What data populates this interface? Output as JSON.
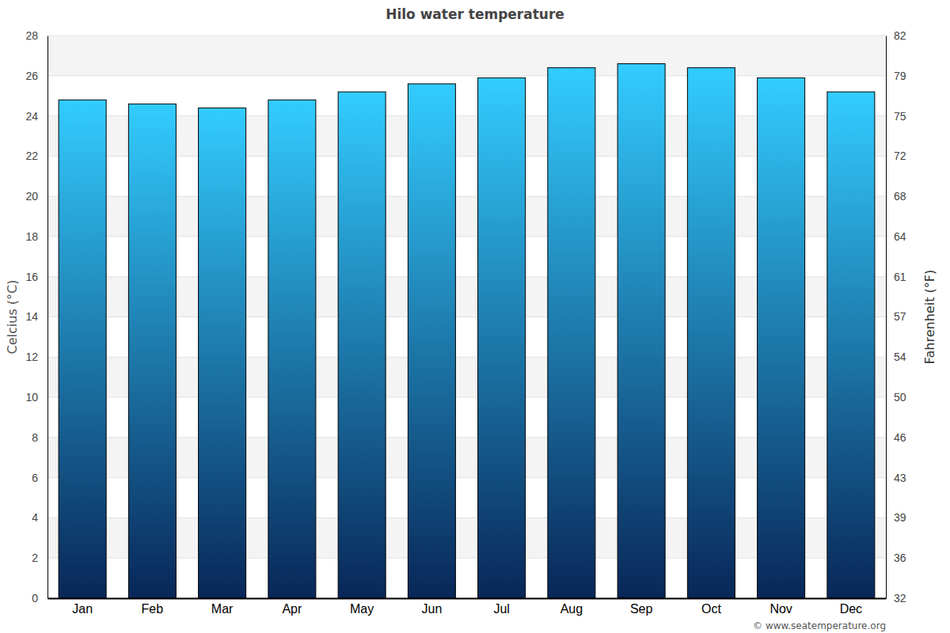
{
  "chart_data": {
    "type": "bar",
    "title": "Hilo water temperature",
    "categories": [
      "Jan",
      "Feb",
      "Mar",
      "Apr",
      "May",
      "Jun",
      "Jul",
      "Aug",
      "Sep",
      "Oct",
      "Nov",
      "Dec"
    ],
    "values": [
      24.8,
      24.6,
      24.4,
      24.8,
      25.2,
      25.6,
      25.9,
      26.4,
      26.6,
      26.4,
      25.9,
      25.2
    ],
    "color": "#33ccff",
    "y_label": "Celcius (°C)",
    "y2_label": "Fahrenheit (°F)",
    "ylim": [
      0,
      28
    ],
    "yticks": [
      0,
      2,
      4,
      6,
      8,
      10,
      12,
      14,
      16,
      18,
      20,
      22,
      24,
      26,
      28
    ],
    "y2lim": [
      32,
      82.4
    ],
    "y2ticks": [
      32,
      {
        "value": 35.6,
        "label": "36"
      },
      {
        "value": 39.2,
        "label": "39"
      },
      {
        "value": 42.8,
        "label": "43"
      },
      {
        "value": 46.4,
        "label": "46"
      },
      50,
      {
        "value": 53.6,
        "label": "54"
      },
      {
        "value": 57.2,
        "label": "57"
      },
      {
        "value": 60.8,
        "label": "61"
      },
      {
        "value": 64.4,
        "label": "64"
      },
      68,
      {
        "value": 71.6,
        "label": "72"
      },
      {
        "value": 75.2,
        "label": "75"
      },
      {
        "value": 78.8,
        "label": "79"
      },
      {
        "value": 82.4,
        "label": "82"
      }
    ],
    "grid": true,
    "source": "© www.seatemperature.org"
  }
}
